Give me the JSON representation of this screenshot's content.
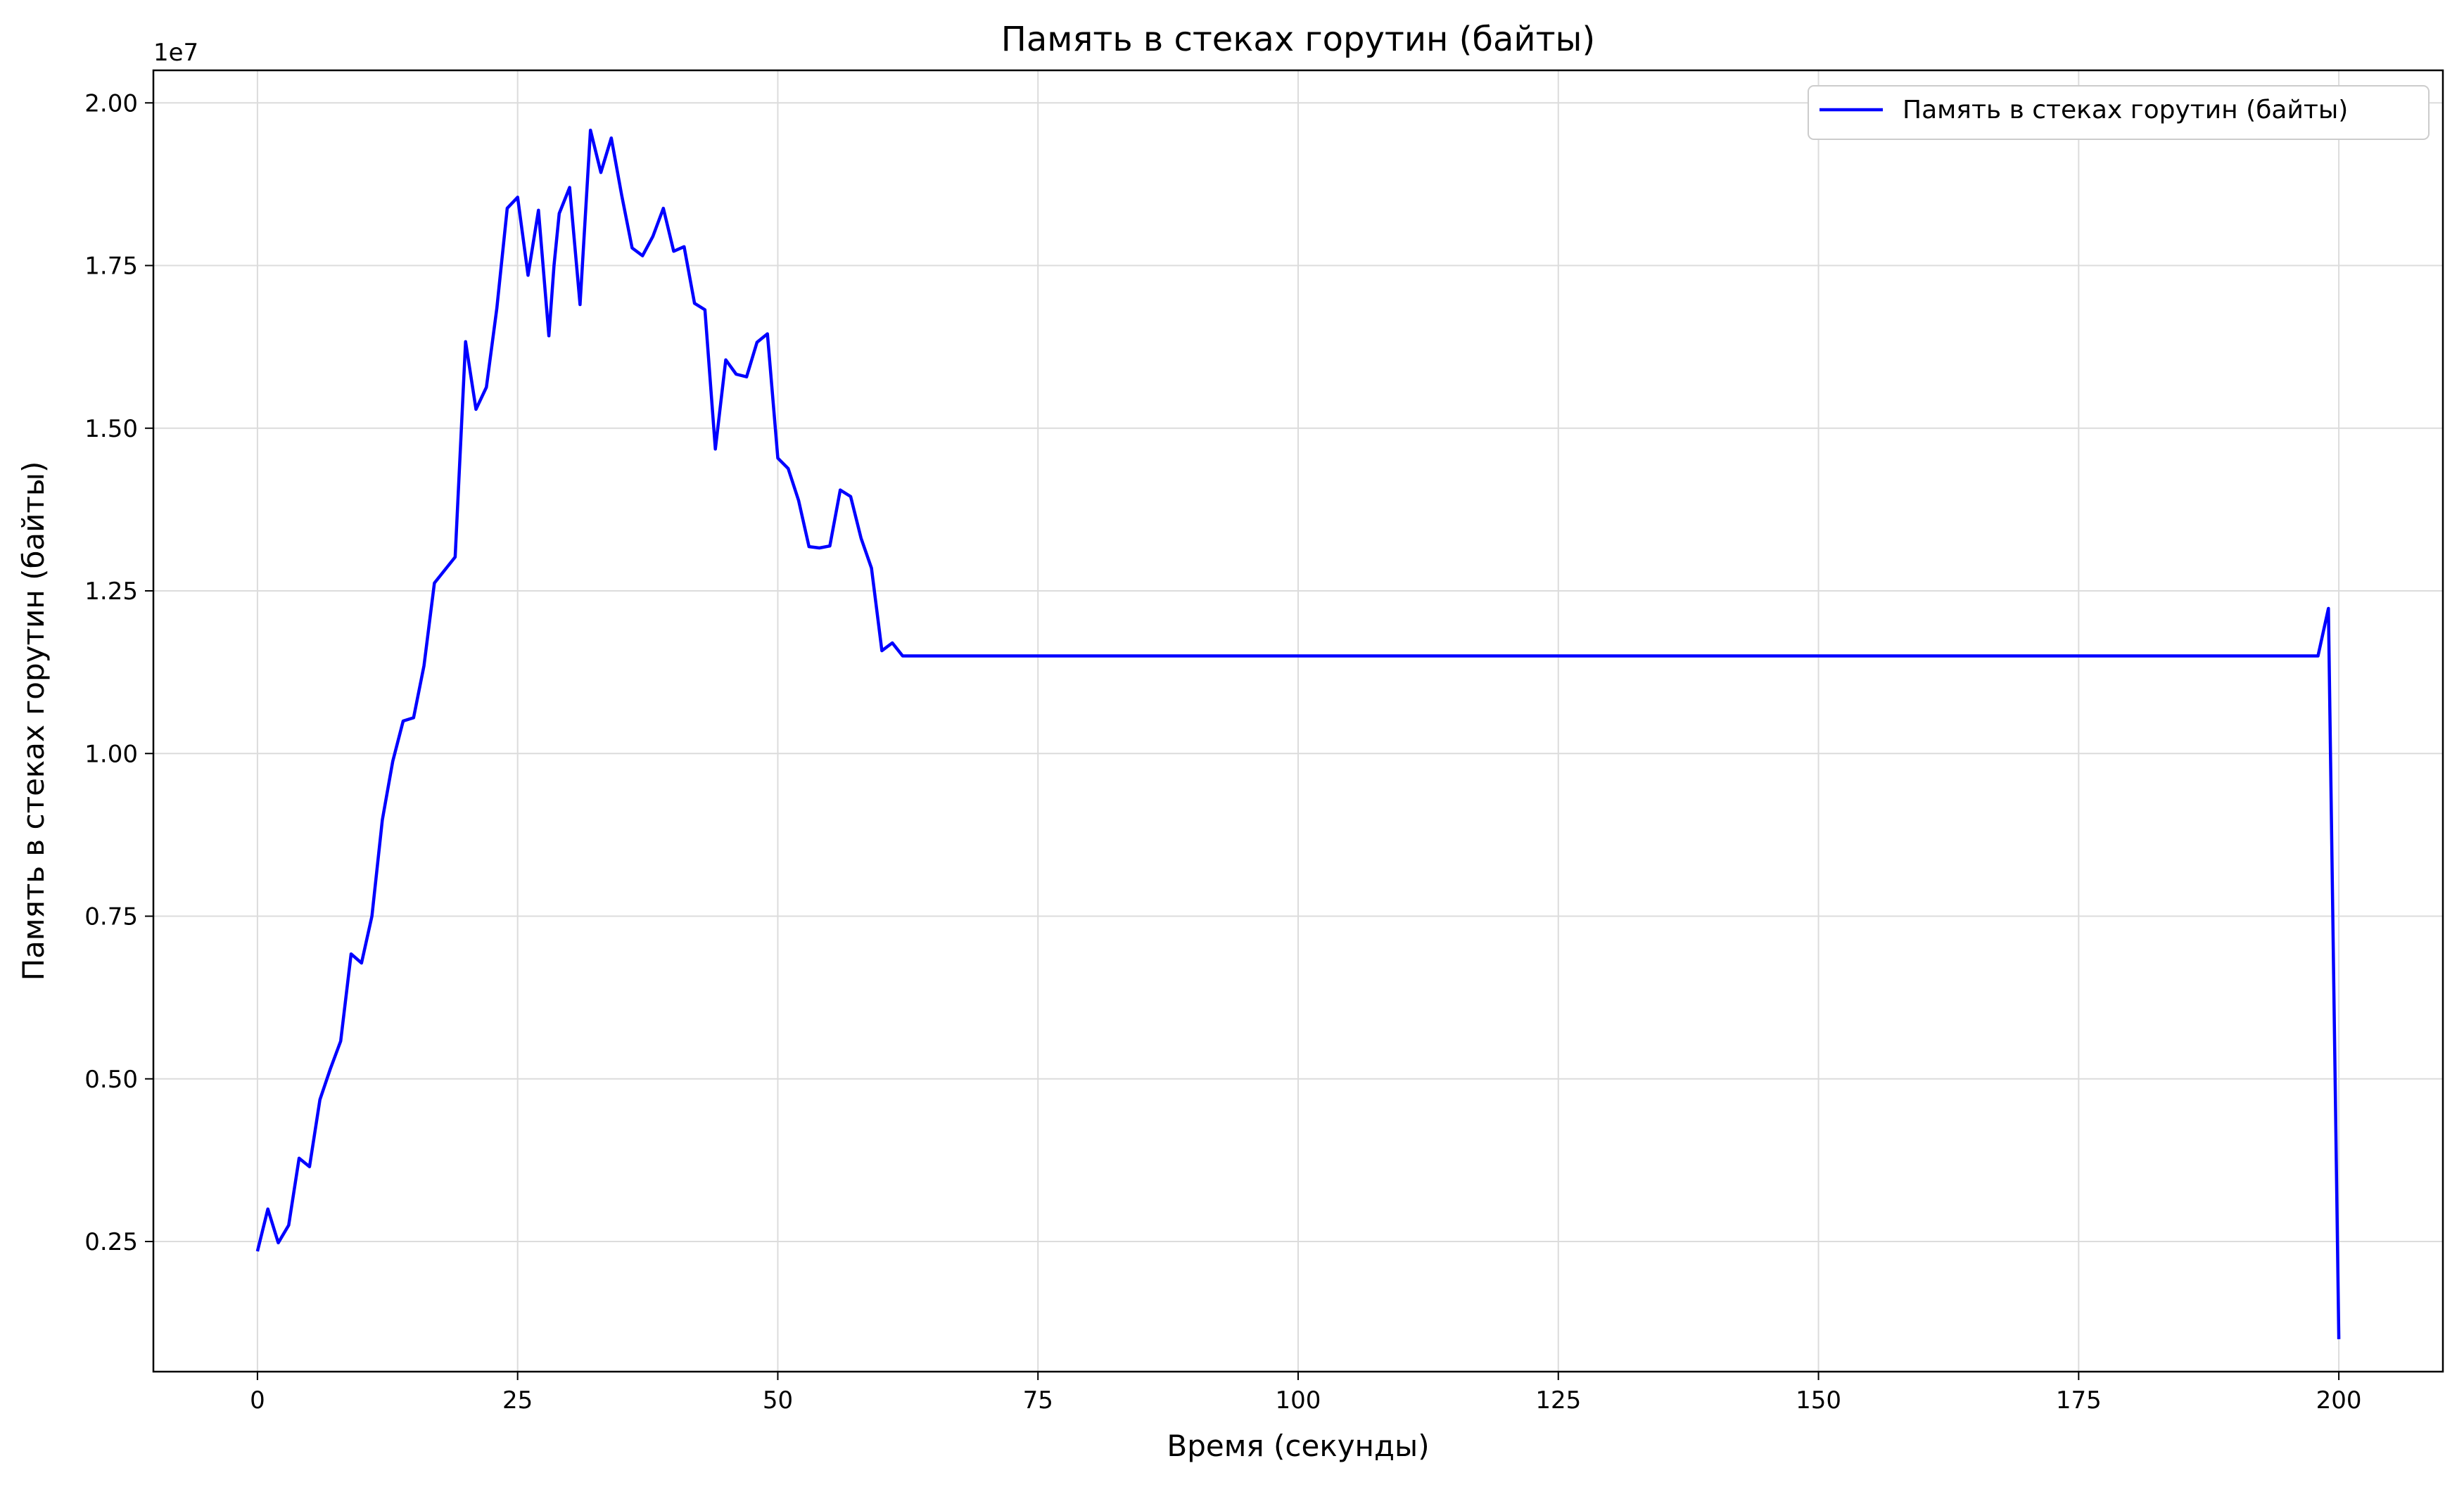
{
  "chart_data": {
    "type": "line",
    "title": "Память в стеках горутин (байты)",
    "xlabel": "Время (секунды)",
    "ylabel": "Память в стеках горутин (байты)",
    "y_offset_label": "1e7",
    "xlim": [
      -10,
      210
    ],
    "ylim": [
      500000,
      20500000
    ],
    "x_ticks": [
      0,
      25,
      50,
      75,
      100,
      125,
      150,
      175,
      200
    ],
    "x_tick_labels": [
      "0",
      "25",
      "50",
      "75",
      "100",
      "125",
      "150",
      "175",
      "200"
    ],
    "y_ticks": [
      2500000,
      5000000,
      7500000,
      10000000,
      12500000,
      15000000,
      17500000,
      20000000
    ],
    "y_tick_labels": [
      "0.25",
      "0.50",
      "0.75",
      "1.00",
      "1.25",
      "1.50",
      "1.75",
      "2.00"
    ],
    "grid": true,
    "legend_position": "top-right",
    "series": [
      {
        "name": "Память в стеках горутин (байты)",
        "color": "#0000ff",
        "points": [
          [
            0,
            2350000
          ],
          [
            1,
            3000000
          ],
          [
            2,
            2480000
          ],
          [
            3,
            2750000
          ],
          [
            4,
            3780000
          ],
          [
            5,
            3650000
          ],
          [
            6,
            4680000
          ],
          [
            7,
            5150000
          ],
          [
            8,
            5580000
          ],
          [
            9,
            6920000
          ],
          [
            10,
            6780000
          ],
          [
            11,
            7500000
          ],
          [
            12,
            8980000
          ],
          [
            13,
            9880000
          ],
          [
            14,
            10500000
          ],
          [
            15,
            10550000
          ],
          [
            16,
            11350000
          ],
          [
            17,
            12620000
          ],
          [
            19,
            13020000
          ],
          [
            20,
            16330000
          ],
          [
            21,
            15290000
          ],
          [
            22,
            15630000
          ],
          [
            23,
            16840000
          ],
          [
            24,
            18380000
          ],
          [
            25,
            18550000
          ],
          [
            26,
            17350000
          ],
          [
            27,
            18350000
          ],
          [
            28,
            16420000
          ],
          [
            28.5,
            17500000
          ],
          [
            29,
            18300000
          ],
          [
            30,
            18700000
          ],
          [
            31,
            16900000
          ],
          [
            32,
            19580000
          ],
          [
            33,
            18930000
          ],
          [
            34,
            19460000
          ],
          [
            35,
            18580000
          ],
          [
            36,
            17770000
          ],
          [
            37,
            17650000
          ],
          [
            38,
            17950000
          ],
          [
            39,
            18380000
          ],
          [
            40,
            17720000
          ],
          [
            41,
            17790000
          ],
          [
            42,
            16920000
          ],
          [
            43,
            16820000
          ],
          [
            44,
            14680000
          ],
          [
            45,
            16050000
          ],
          [
            46,
            15830000
          ],
          [
            47,
            15790000
          ],
          [
            48,
            16320000
          ],
          [
            49,
            16450000
          ],
          [
            50,
            14540000
          ],
          [
            51,
            14380000
          ],
          [
            52,
            13890000
          ],
          [
            53,
            13180000
          ],
          [
            54,
            13160000
          ],
          [
            55,
            13190000
          ],
          [
            56,
            14050000
          ],
          [
            57,
            13950000
          ],
          [
            58,
            13310000
          ],
          [
            59,
            12850000
          ],
          [
            60,
            11580000
          ],
          [
            61,
            11700000
          ],
          [
            62,
            11500000
          ],
          [
            80,
            11500000
          ],
          [
            120,
            11500000
          ],
          [
            160,
            11500000
          ],
          [
            198,
            11500000
          ],
          [
            199,
            12230000
          ],
          [
            200,
            1000000
          ]
        ]
      }
    ]
  }
}
